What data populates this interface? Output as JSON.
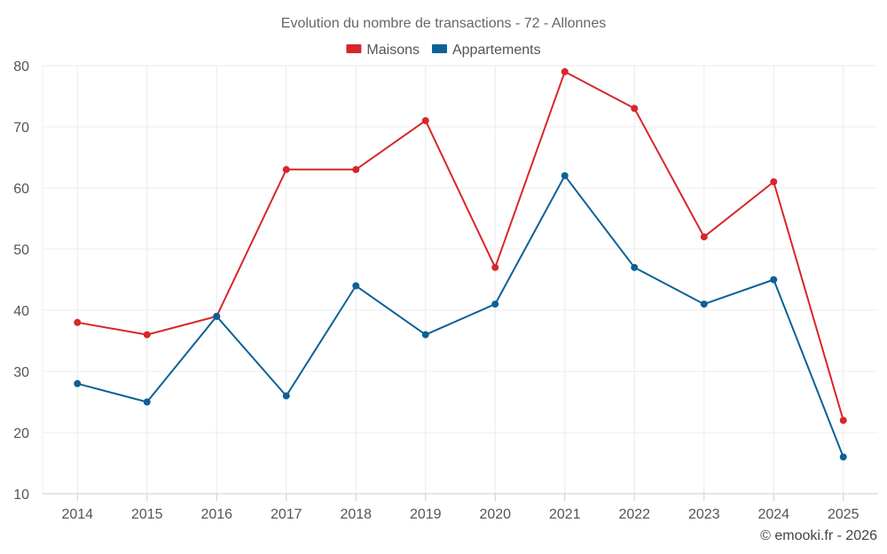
{
  "chart_data": {
    "type": "line",
    "title": "Evolution du nombre de transactions - 72 - Allonnes",
    "xlabel": "",
    "ylabel": "",
    "categories": [
      "2014",
      "2015",
      "2016",
      "2017",
      "2018",
      "2019",
      "2020",
      "2021",
      "2022",
      "2023",
      "2024",
      "2025"
    ],
    "series": [
      {
        "name": "Maisons",
        "color": "#d7262b",
        "values": [
          38,
          36,
          39,
          63,
          63,
          71,
          47,
          79,
          73,
          52,
          61,
          22
        ]
      },
      {
        "name": "Appartements",
        "color": "#0b6196",
        "values": [
          28,
          25,
          39,
          26,
          44,
          36,
          41,
          62,
          47,
          41,
          45,
          16
        ]
      }
    ],
    "ylim": [
      10,
      80
    ],
    "yticks": [
      "10",
      "20",
      "30",
      "40",
      "50",
      "60",
      "70",
      "80"
    ],
    "grid": true,
    "legend_position": "top-center"
  },
  "credit": "© emooki.fr - 2026"
}
